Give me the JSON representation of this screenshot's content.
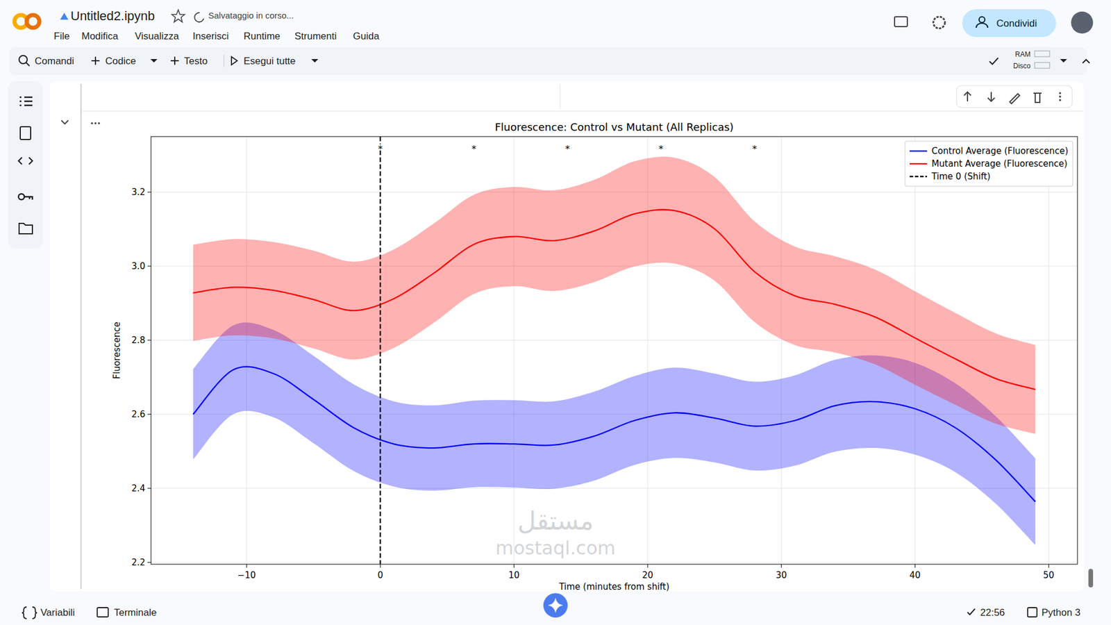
{
  "page": {
    "notebook_title": "Untitled2.ipynb",
    "save_status": "Salvataggio in corso...",
    "menu": [
      "File",
      "Modifica",
      "Visualizza",
      "Inserisci",
      "Runtime",
      "Strumenti",
      "Guida"
    ],
    "share_button": "Condividi",
    "toolbar": [
      "Comandi",
      "Codice",
      "Testo",
      "Esegui tutte"
    ],
    "resources": [
      "RAM",
      "Disco"
    ],
    "status_bar": {
      "left": [
        "Variabili",
        "Terminale"
      ],
      "time": "22:56",
      "runtime": "Python 3"
    },
    "watermark": [
      "مستقل",
      "mostaql.com"
    ]
  },
  "chart_data": {
    "type": "line",
    "title": "Fluorescence: Control vs Mutant (All Replicas)",
    "x_label": "Time (minutes from shift)",
    "y_label": "Fluorescence",
    "x": [
      -14,
      -11,
      -8,
      -5,
      -2,
      1,
      4,
      7,
      10,
      13,
      16,
      19,
      22,
      25,
      28,
      31,
      34,
      37,
      40,
      43,
      46,
      49
    ],
    "series": [
      {
        "name": "Control Average (Fluorescence)",
        "color": "#0000ff",
        "values": [
          2.6,
          2.72,
          2.71,
          2.64,
          2.564,
          2.52,
          2.509,
          2.52,
          2.52,
          2.517,
          2.541,
          2.583,
          2.604,
          2.59,
          2.568,
          2.583,
          2.623,
          2.634,
          2.615,
          2.564,
          2.478,
          2.364
        ],
        "error": [
          0.122,
          0.12,
          0.118,
          0.118,
          0.117,
          0.115,
          0.115,
          0.117,
          0.118,
          0.118,
          0.12,
          0.12,
          0.122,
          0.12,
          0.12,
          0.122,
          0.124,
          0.125,
          0.124,
          0.12,
          0.118,
          0.117
        ]
      },
      {
        "name": "Mutant Average (Fluorescence)",
        "color": "#ff0000",
        "values": [
          2.928,
          2.943,
          2.935,
          2.91,
          2.88,
          2.912,
          2.981,
          3.059,
          3.08,
          3.069,
          3.095,
          3.141,
          3.15,
          3.101,
          2.985,
          2.92,
          2.897,
          2.863,
          2.806,
          2.75,
          2.697,
          2.667
        ],
        "error": [
          0.13,
          0.13,
          0.13,
          0.132,
          0.132,
          0.133,
          0.134,
          0.134,
          0.134,
          0.136,
          0.138,
          0.142,
          0.143,
          0.14,
          0.136,
          0.133,
          0.13,
          0.128,
          0.126,
          0.124,
          0.122,
          0.12
        ]
      }
    ],
    "vlines": [
      {
        "x": 0,
        "name": "Time 0 (Shift)",
        "color": "#000000",
        "line_style": "dashed"
      }
    ],
    "annotations": [
      {
        "text": "*",
        "x": 0,
        "y": 3.32
      },
      {
        "text": "*",
        "x": 7,
        "y": 3.32
      },
      {
        "text": "*",
        "x": 14,
        "y": 3.32
      },
      {
        "text": "*",
        "x": 21,
        "y": 3.32
      },
      {
        "text": "*",
        "x": 28,
        "y": 3.32
      }
    ],
    "xlim": [
      -17.15,
      52.15
    ],
    "ylim": [
      2.195,
      3.35
    ],
    "xticks": [
      {
        "value": -10,
        "label": "−10"
      },
      0,
      10,
      20,
      30,
      40,
      50
    ],
    "yticks": [
      2.2,
      2.4,
      2.6,
      2.8,
      {
        "value": 3,
        "label": "3.0"
      },
      3.2
    ],
    "grid": true,
    "legend": "upper right"
  }
}
